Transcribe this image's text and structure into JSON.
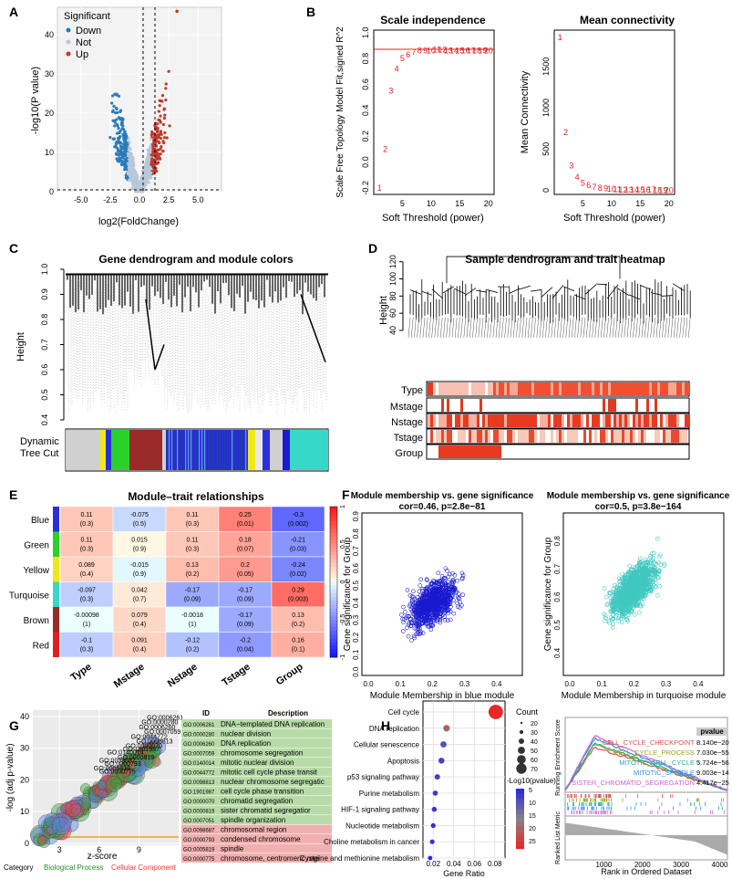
{
  "panels": {
    "A": {
      "letter": "A",
      "legend_title": "Significant",
      "legend": [
        {
          "label": "Down",
          "color": "#2b7bba"
        },
        {
          "label": "Not",
          "color": "#b8c8d8"
        },
        {
          "label": "Up",
          "color": "#c0392b"
        }
      ],
      "xlabel": "log2(FoldChange)",
      "ylabel": "-log10(P value)",
      "xticks": [
        "-5.0",
        "-2.5",
        "0.0",
        "2.5",
        "5.0"
      ],
      "yticks": [
        "0",
        "10",
        "20",
        "30",
        "40"
      ]
    },
    "B": {
      "letter": "B",
      "left_title": "Scale independence",
      "right_title": "Mean connectivity",
      "left_ylabel": "Scale Free Topology Model Fit,signed R^2",
      "right_ylabel": "Mean Connectivity",
      "xlabel": "Soft Threshold (power)",
      "left_yticks": [
        "-0.2",
        "0.0",
        "0.2",
        "0.4",
        "0.6",
        "0.8",
        "1.0"
      ],
      "right_yticks": [
        "0",
        "500",
        "1000",
        "1500"
      ],
      "xticks": [
        "5",
        "10",
        "15",
        "20"
      ]
    },
    "C": {
      "letter": "C",
      "title": "Gene dendrogram and module colors",
      "ylabel": "Height",
      "yticks": [
        "0.4",
        "0.5",
        "0.6",
        "0.7",
        "0.8",
        "0.9",
        "1.0"
      ],
      "row_label_1": "Dynamic",
      "row_label_2": "Tree Cut"
    },
    "D": {
      "letter": "D",
      "title": "Sample dendrogram and trait heatmap",
      "ylabel": "Height",
      "yticks": [
        "40",
        "60",
        "80",
        "100",
        "120"
      ],
      "traits": [
        "Type",
        "Mstage",
        "Nstage",
        "Tstage",
        "Group"
      ]
    },
    "E": {
      "letter": "E",
      "title": "Module–trait relationships",
      "rows": [
        "Blue",
        "Green",
        "Yellow",
        "Turquoise",
        "Brown",
        "Red"
      ],
      "row_colors": [
        "#2a30d8",
        "#2bd12b",
        "#f0e81a",
        "#38d8c8",
        "#9a2a2a",
        "#e02020"
      ],
      "cols": [
        "Type",
        "Mstage",
        "Nstage",
        "Tstage",
        "Group"
      ],
      "cells": [
        [
          [
            "0.11",
            "(0.3)"
          ],
          [
            "-0.075",
            "(0.5)"
          ],
          [
            "0.11",
            "(0.3)"
          ],
          [
            "0.25",
            "(0.01)"
          ],
          [
            "-0.3",
            "(0.002)"
          ]
        ],
        [
          [
            "0.11",
            "(0.3)"
          ],
          [
            "0.015",
            "(0.9)"
          ],
          [
            "0.11",
            "(0.3)"
          ],
          [
            "0.18",
            "(0.07)"
          ],
          [
            "-0.21",
            "(0.03)"
          ]
        ],
        [
          [
            "0.089",
            "(0.4)"
          ],
          [
            "-0.015",
            "(0.9)"
          ],
          [
            "0.13",
            "(0.2)"
          ],
          [
            "0.2",
            "(0.05)"
          ],
          [
            "-0.24",
            "(0.02)"
          ]
        ],
        [
          [
            "-0.097",
            "(0.3)"
          ],
          [
            "0.042",
            "(0.7)"
          ],
          [
            "-0.17",
            "(0.09)"
          ],
          [
            "-0.17",
            "(0.09)"
          ],
          [
            "0.29",
            "(0.003)"
          ]
        ],
        [
          [
            "-0.00098",
            "(1)"
          ],
          [
            "0.079",
            "(0.4)"
          ],
          [
            "-0.0018",
            "(1)"
          ],
          [
            "-0.17",
            "(0.09)"
          ],
          [
            "0.13",
            "(0.2)"
          ]
        ],
        [
          [
            "-0.1",
            "(0.3)"
          ],
          [
            "0.091",
            "(0.4)"
          ],
          [
            "-0.12",
            "(0.2)"
          ],
          [
            "-0.2",
            "(0.04)"
          ],
          [
            "0.16",
            "(0.1)"
          ]
        ]
      ],
      "values": [
        [
          0.11,
          -0.075,
          0.11,
          0.25,
          -0.3
        ],
        [
          0.11,
          0.015,
          0.11,
          0.18,
          -0.21
        ],
        [
          0.089,
          -0.015,
          0.13,
          0.2,
          -0.24
        ],
        [
          -0.097,
          0.042,
          -0.17,
          -0.17,
          0.29
        ],
        [
          -0.00098,
          0.079,
          -0.0018,
          -0.17,
          0.13
        ],
        [
          -0.1,
          0.091,
          -0.12,
          -0.2,
          0.16
        ]
      ],
      "scale_ticks": [
        "1",
        "0.5",
        "0",
        "-0.5",
        "-1"
      ]
    },
    "F": {
      "letter": "F",
      "left_title_1": "Module membership vs. gene significance",
      "left_title_2": "cor=0.46, p=2.8e−81",
      "right_title_1": "Module membership vs. gene significance",
      "right_title_2": "cor=0.5, p=3.8e−164",
      "ylabel": "Gene significance for  Group",
      "left_xlabel": "Module Membership in blue module",
      "right_xlabel": "Module Membership in turquoise module",
      "left_xticks": [
        "0.0",
        "0.1",
        "0.2",
        "0.3",
        "0.4"
      ],
      "right_xticks": [
        "0.0",
        "0.1",
        "0.2",
        "0.3",
        "0.4"
      ],
      "left_yticks": [
        "0.0",
        "0.1",
        "0.2",
        "0.3",
        "0.4",
        "0.5",
        "0.6",
        "0.7",
        "0.8",
        "0.9"
      ],
      "right_yticks": [
        "0.4",
        "0.5",
        "0.6",
        "0.7",
        "0.8"
      ],
      "left_color": "#1a1ad0",
      "right_color": "#40c8c0"
    },
    "G": {
      "letter": "G",
      "ylabel": "-log (adj p-value)",
      "xlabel": "z-score",
      "xticks": [
        "3",
        "6",
        "9"
      ],
      "yticks": [
        "0",
        "10",
        "20",
        "30",
        "40"
      ],
      "category_label": "Category",
      "cat_bp": "Biological Process",
      "cat_cc": "Cellular Component",
      "table_header_id": "ID",
      "table_header_desc": "Description",
      "table_rows": [
        {
          "id": "GO:0006261",
          "desc": "DNA−templated DNA replication",
          "cat": "bp"
        },
        {
          "id": "GO:0000280",
          "desc": "nuclear division",
          "cat": "bp"
        },
        {
          "id": "GO:0006260",
          "desc": "DNA replication",
          "cat": "bp"
        },
        {
          "id": "GO:0007059",
          "desc": "chromosome segregation",
          "cat": "bp"
        },
        {
          "id": "GO:0140014",
          "desc": "mitotic nuclear division",
          "cat": "bp"
        },
        {
          "id": "GO:0044772",
          "desc": "mitotic cell cycle phase transit",
          "cat": "bp"
        },
        {
          "id": "GO:0098813",
          "desc": "nuclear chromosome segregatic",
          "cat": "bp"
        },
        {
          "id": "GO:1901987",
          "desc": "cell cycle phase transition",
          "cat": "bp"
        },
        {
          "id": "GO:0000070",
          "desc": "chromatid segregation",
          "cat": "bp"
        },
        {
          "id": "GO:0000819",
          "desc": "sister chromatid segregatior",
          "cat": "bp"
        },
        {
          "id": "GO:0007051",
          "desc": "spindle organization",
          "cat": "bp"
        },
        {
          "id": "GO:0098687",
          "desc": "chromosomal region",
          "cat": "cc"
        },
        {
          "id": "GO:0000793",
          "desc": "condensed chromosome",
          "cat": "cc"
        },
        {
          "id": "GO:0005819",
          "desc": "spindle",
          "cat": "cc"
        },
        {
          "id": "GO:0000775",
          "desc": "chromosome, centromeric regi",
          "cat": "cc"
        }
      ],
      "bubble_labels": [
        "GO:0006261",
        "GO:0000280",
        "GO:0006260",
        "GO:0007059",
        "GO:0044772",
        "GO:0098813",
        "GO:0000070",
        "GO:1901987",
        "GO:0140014",
        "GO:0000819",
        "GO:0098687",
        "GO:0000793",
        "GO:0005819",
        "GO:0000775"
      ]
    },
    "H": {
      "letter": "H",
      "chart_data": {
        "type": "scatter",
        "title": "",
        "xlabel": "Gene Ratio",
        "ylabel": "",
        "xlim": [
          0.01,
          0.09
        ],
        "xticks": [
          "0.02",
          "0.04",
          "0.06",
          "0.08"
        ],
        "categories": [
          "Cell cycle",
          "DNA replication",
          "Cellular senescence",
          "Apoptosis",
          "p53 signaling pathway",
          "Purine metabolism",
          "HIF-1 signaling pathway",
          "Nucleotide metabolism",
          "Choline metabolism in cancer",
          "Cysteine and methionine metabolism"
        ],
        "gene_ratio": [
          0.081,
          0.033,
          0.03,
          0.028,
          0.024,
          0.022,
          0.021,
          0.02,
          0.019,
          0.017
        ],
        "count": [
          75,
          24,
          22,
          20,
          17,
          15,
          14,
          13,
          12,
          10
        ],
        "neg_log10_p": [
          25,
          18,
          8,
          6,
          6,
          5,
          5,
          4,
          4,
          3
        ],
        "size_legend_title": "Count",
        "size_legend": [
          20,
          30,
          40,
          50,
          60,
          70
        ],
        "color_legend_title": "-Log10(pvalue)",
        "color_legend_ticks": [
          "5",
          "10",
          "15",
          "20",
          "25"
        ]
      }
    },
    "I": {
      "letter": "I",
      "ylabel_top": "Running Enrichment Score",
      "ylabel_bottom": "Ranked List Metric",
      "xlabel": "Rank in Ordered Dataset",
      "xticks": [
        "1000",
        "2000",
        "3000",
        "4000"
      ],
      "table_header": "pvalue",
      "sets": [
        {
          "name": "CELL_CYCLE_CHECKPOINT",
          "p": "8.140e−20",
          "color": "#e05050"
        },
        {
          "name": "CELL_CYCLE_PROCESS",
          "p": "7.030e−55",
          "color": "#a0a020"
        },
        {
          "name": "MITOTIC_CELL_CYCLE",
          "p": "5.724e−56",
          "color": "#20b0a0"
        },
        {
          "name": "MITOTIC_SPINDLE",
          "p": "9.003e−14",
          "color": "#3090e0"
        },
        {
          "name": "SISTER_CHROMATID_SEGREGATION",
          "p": "4.417e−25",
          "color": "#d060d0"
        }
      ]
    }
  }
}
